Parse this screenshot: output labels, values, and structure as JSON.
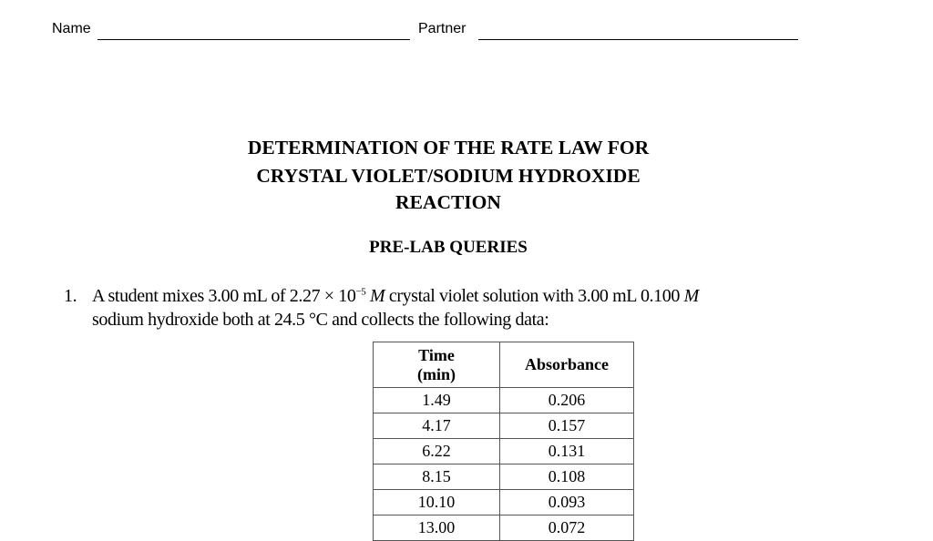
{
  "header": {
    "name_label": "Name",
    "partner_label": "Partner"
  },
  "title": {
    "line1": "DETERMINATION OF THE RATE LAW FOR",
    "line2": "CRYSTAL VIOLET/SODIUM HYDROXIDE",
    "line3": "REACTION"
  },
  "section": "PRE-LAB QUERIES",
  "question": {
    "number": "1.",
    "line1_a": "A student mixes 3.00 mL of 2.27 × 10",
    "line1_exp": "−5",
    "line1_b": " M",
    "line1_c": " crystal violet solution with 3.00 mL 0.100 ",
    "line1_d": "M",
    "line2": "sodium hydroxide both at 24.5 °C and collects the following data:"
  },
  "table": {
    "headers": [
      "Time (min)",
      "Absorbance"
    ],
    "header_time_1": "Time",
    "header_time_2": "(min)",
    "rows": [
      [
        "1.49",
        "0.206"
      ],
      [
        "4.17",
        "0.157"
      ],
      [
        "6.22",
        "0.131"
      ],
      [
        "8.15",
        "0.108"
      ],
      [
        "10.10",
        "0.093"
      ],
      [
        "13.00",
        "0.072"
      ]
    ]
  }
}
